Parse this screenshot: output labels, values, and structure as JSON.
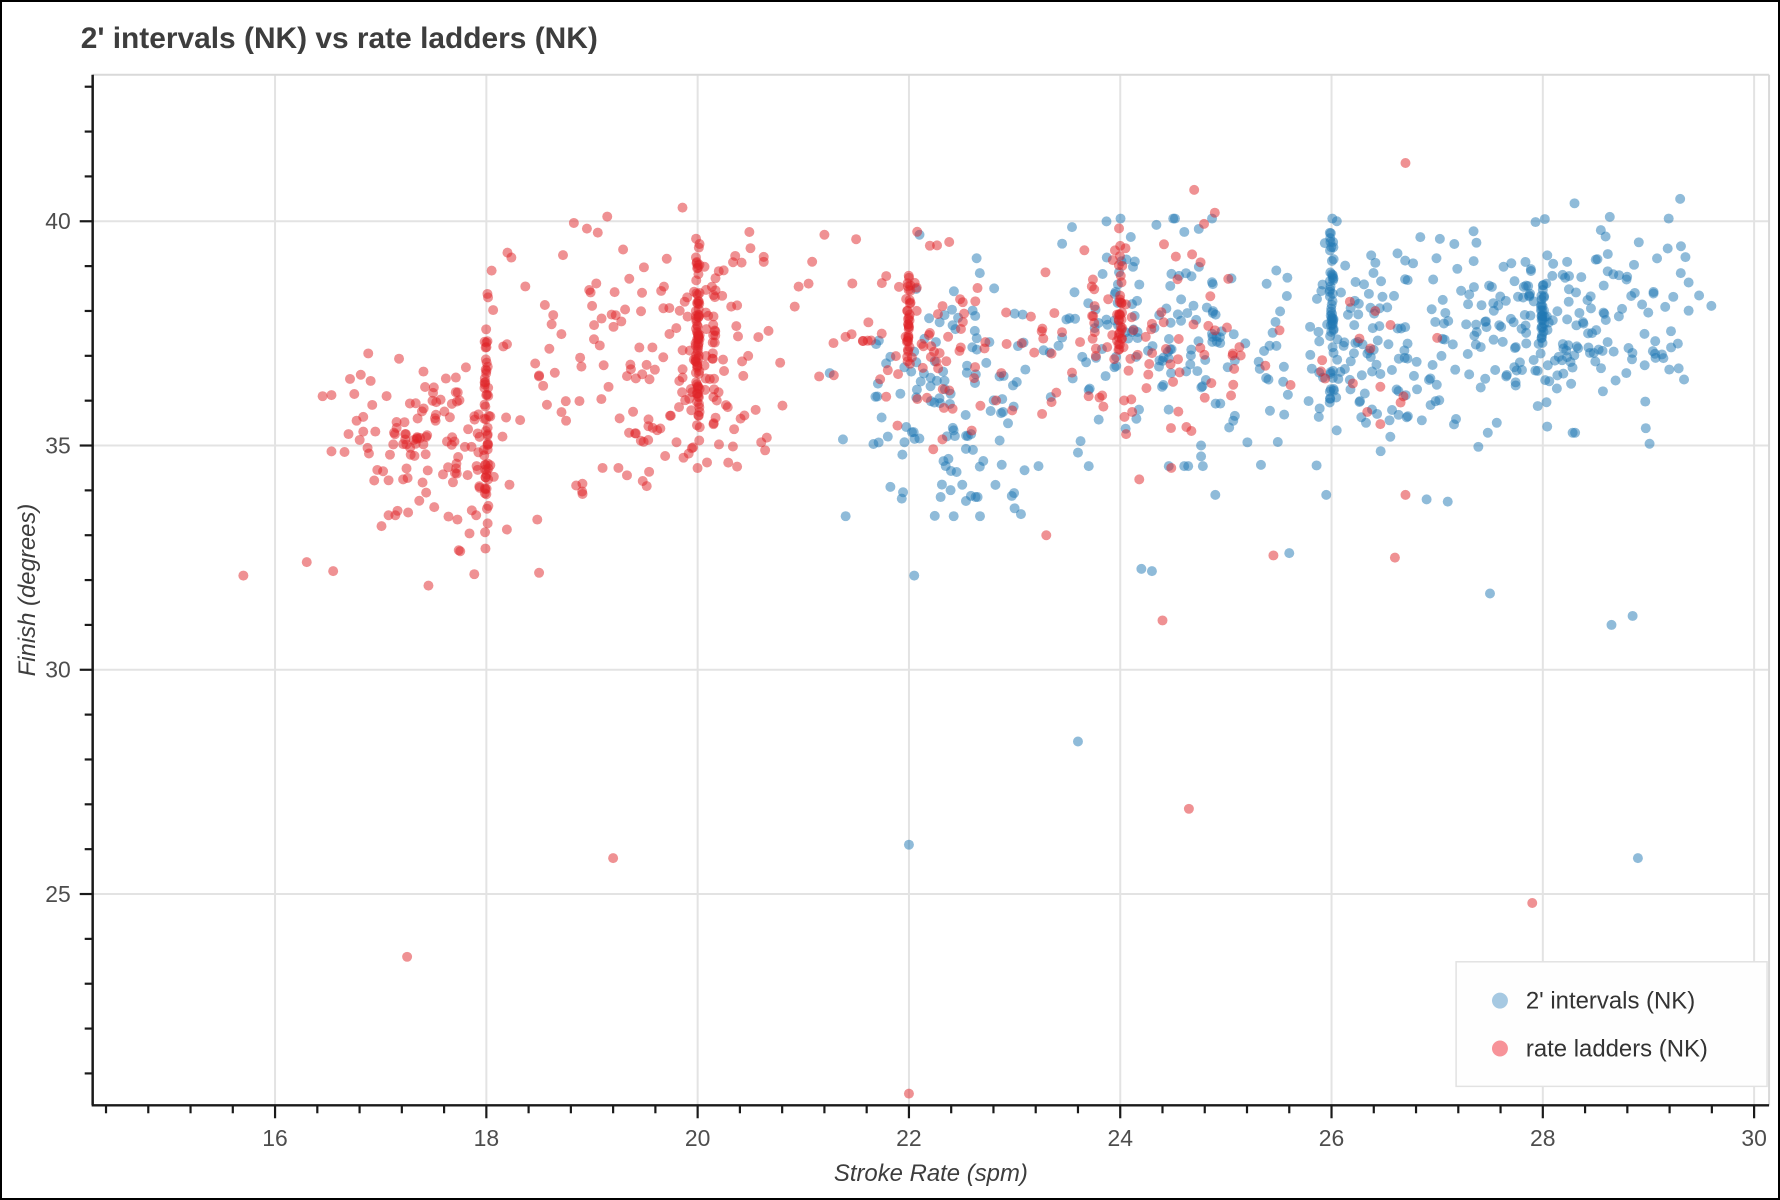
{
  "title": "2' intervals (NK) vs rate ladders (NK)",
  "chart_data": {
    "type": "scatter",
    "title": "2' intervals (NK) vs rate ladders (NK)",
    "xlabel": "Stroke Rate (spm)",
    "ylabel": "Finish (degrees)",
    "xlim": [
      14.3,
      30.15
    ],
    "ylim": [
      20.3,
      43.25
    ],
    "x_major_ticks": [
      16,
      18,
      20,
      22,
      24,
      26,
      28,
      30
    ],
    "x_minor_step": 0.4,
    "y_major_ticks": [
      25,
      30,
      35,
      40
    ],
    "y_minor_step": 1,
    "grid": true,
    "grid_color": "#e3e3e3",
    "spine_color": "#1a1a1a",
    "light_spine_color": "#d9d9d9",
    "marker_radius": 5,
    "marker_opacity": 0.5,
    "legend_position": "bottom-right",
    "series": [
      {
        "name": "2' intervals (NK)",
        "color": "#1f77b4",
        "legend_color": "#a6c9e2",
        "clusters": [
          {
            "cx": 22.4,
            "cy": 36.3,
            "sx": 0.5,
            "sy": 1.25,
            "n": 110
          },
          {
            "cx": 22.75,
            "cy": 34.0,
            "sx": 0.22,
            "sy": 0.28,
            "n": 12
          },
          {
            "cx": 24.3,
            "cy": 37.3,
            "sx": 0.55,
            "sy": 1.2,
            "n": 140
          },
          {
            "cx": 26.35,
            "cy": 37.2,
            "sx": 0.55,
            "sy": 1.15,
            "n": 140
          },
          {
            "cx": 28.0,
            "cy": 37.7,
            "sx": 0.6,
            "sy": 1.05,
            "n": 180
          },
          {
            "cx": 29.0,
            "cy": 37.8,
            "sx": 0.35,
            "sy": 1.2,
            "n": 30
          }
        ],
        "stripes": [
          {
            "x": 26.0,
            "y1": 35.3,
            "y2": 40.6,
            "n": 48
          },
          {
            "x": 28.0,
            "y1": 36.8,
            "y2": 39.3,
            "n": 26
          }
        ],
        "points": [
          [
            22.0,
            26.1
          ],
          [
            23.6,
            28.4
          ],
          [
            22.05,
            32.1
          ],
          [
            24.3,
            32.2
          ],
          [
            24.2,
            32.25
          ],
          [
            25.6,
            32.6
          ],
          [
            27.5,
            31.7
          ],
          [
            28.9,
            25.8
          ],
          [
            28.65,
            31.0
          ],
          [
            28.85,
            31.2
          ],
          [
            26.9,
            33.8
          ],
          [
            27.1,
            33.75
          ],
          [
            25.95,
            33.9
          ],
          [
            22.3,
            33.85
          ],
          [
            23.0,
            33.6
          ],
          [
            24.9,
            33.9
          ],
          [
            28.3,
            40.4
          ],
          [
            29.3,
            40.5
          ],
          [
            21.8,
            35.2
          ],
          [
            23.45,
            39.5
          ],
          [
            24.1,
            39.65
          ],
          [
            22.1,
            39.7
          ],
          [
            29.35,
            39.2
          ],
          [
            26.05,
            40.0
          ],
          [
            22.65,
            33.85
          ]
        ]
      },
      {
        "name": "rate ladders (NK)",
        "color": "#e02428",
        "legend_color": "#f79399",
        "clusters": [
          {
            "cx": 17.5,
            "cy": 35.4,
            "sx": 0.42,
            "sy": 0.85,
            "n": 120
          },
          {
            "cx": 17.8,
            "cy": 32.8,
            "sx": 0.45,
            "sy": 0.45,
            "n": 10
          },
          {
            "cx": 18.6,
            "cy": 36.8,
            "sx": 0.38,
            "sy": 1.5,
            "n": 40
          },
          {
            "cx": 20.0,
            "cy": 37.2,
            "sx": 0.5,
            "sy": 1.35,
            "n": 120
          },
          {
            "cx": 19.6,
            "cy": 35.3,
            "sx": 0.3,
            "sy": 0.6,
            "n": 20
          },
          {
            "cx": 22.2,
            "cy": 37.4,
            "sx": 0.5,
            "sy": 1.15,
            "n": 85
          },
          {
            "cx": 24.2,
            "cy": 37.2,
            "sx": 0.5,
            "sy": 1.3,
            "n": 75
          },
          {
            "cx": 25.9,
            "cy": 36.9,
            "sx": 0.55,
            "sy": 0.95,
            "n": 22
          }
        ],
        "stripes": [
          {
            "x": 18.0,
            "y1": 32.1,
            "y2": 38.7,
            "n": 55
          },
          {
            "x": 20.0,
            "y1": 34.6,
            "y2": 40.0,
            "n": 80
          },
          {
            "x": 20.15,
            "y1": 35.8,
            "y2": 39.2,
            "n": 14
          },
          {
            "x": 22.0,
            "y1": 36.2,
            "y2": 39.4,
            "n": 30
          },
          {
            "x": 23.75,
            "y1": 36.8,
            "y2": 38.9,
            "n": 10
          },
          {
            "x": 24.0,
            "y1": 36.4,
            "y2": 39.5,
            "n": 28
          }
        ],
        "points": [
          [
            15.7,
            32.1
          ],
          [
            16.3,
            32.4
          ],
          [
            16.55,
            32.2
          ],
          [
            16.45,
            36.1
          ],
          [
            16.75,
            36.15
          ],
          [
            17.25,
            23.6
          ],
          [
            19.2,
            25.8
          ],
          [
            19.1,
            34.5
          ],
          [
            19.25,
            34.5
          ],
          [
            22.0,
            20.55
          ],
          [
            24.4,
            31.1
          ],
          [
            24.65,
            26.9
          ],
          [
            24.7,
            40.7
          ],
          [
            26.7,
            41.3
          ],
          [
            26.6,
            32.5
          ],
          [
            27.9,
            24.8
          ],
          [
            26.7,
            33.9
          ],
          [
            25.45,
            32.55
          ],
          [
            27.0,
            37.4
          ],
          [
            21.2,
            39.7
          ],
          [
            21.5,
            39.6
          ],
          [
            18.2,
            39.3
          ],
          [
            18.05,
            38.9
          ],
          [
            20.5,
            39.4
          ],
          [
            23.3,
            33.0
          ],
          [
            24.05,
            39.4
          ],
          [
            24.0,
            39.45
          ],
          [
            23.95,
            39.35
          ]
        ]
      }
    ]
  }
}
